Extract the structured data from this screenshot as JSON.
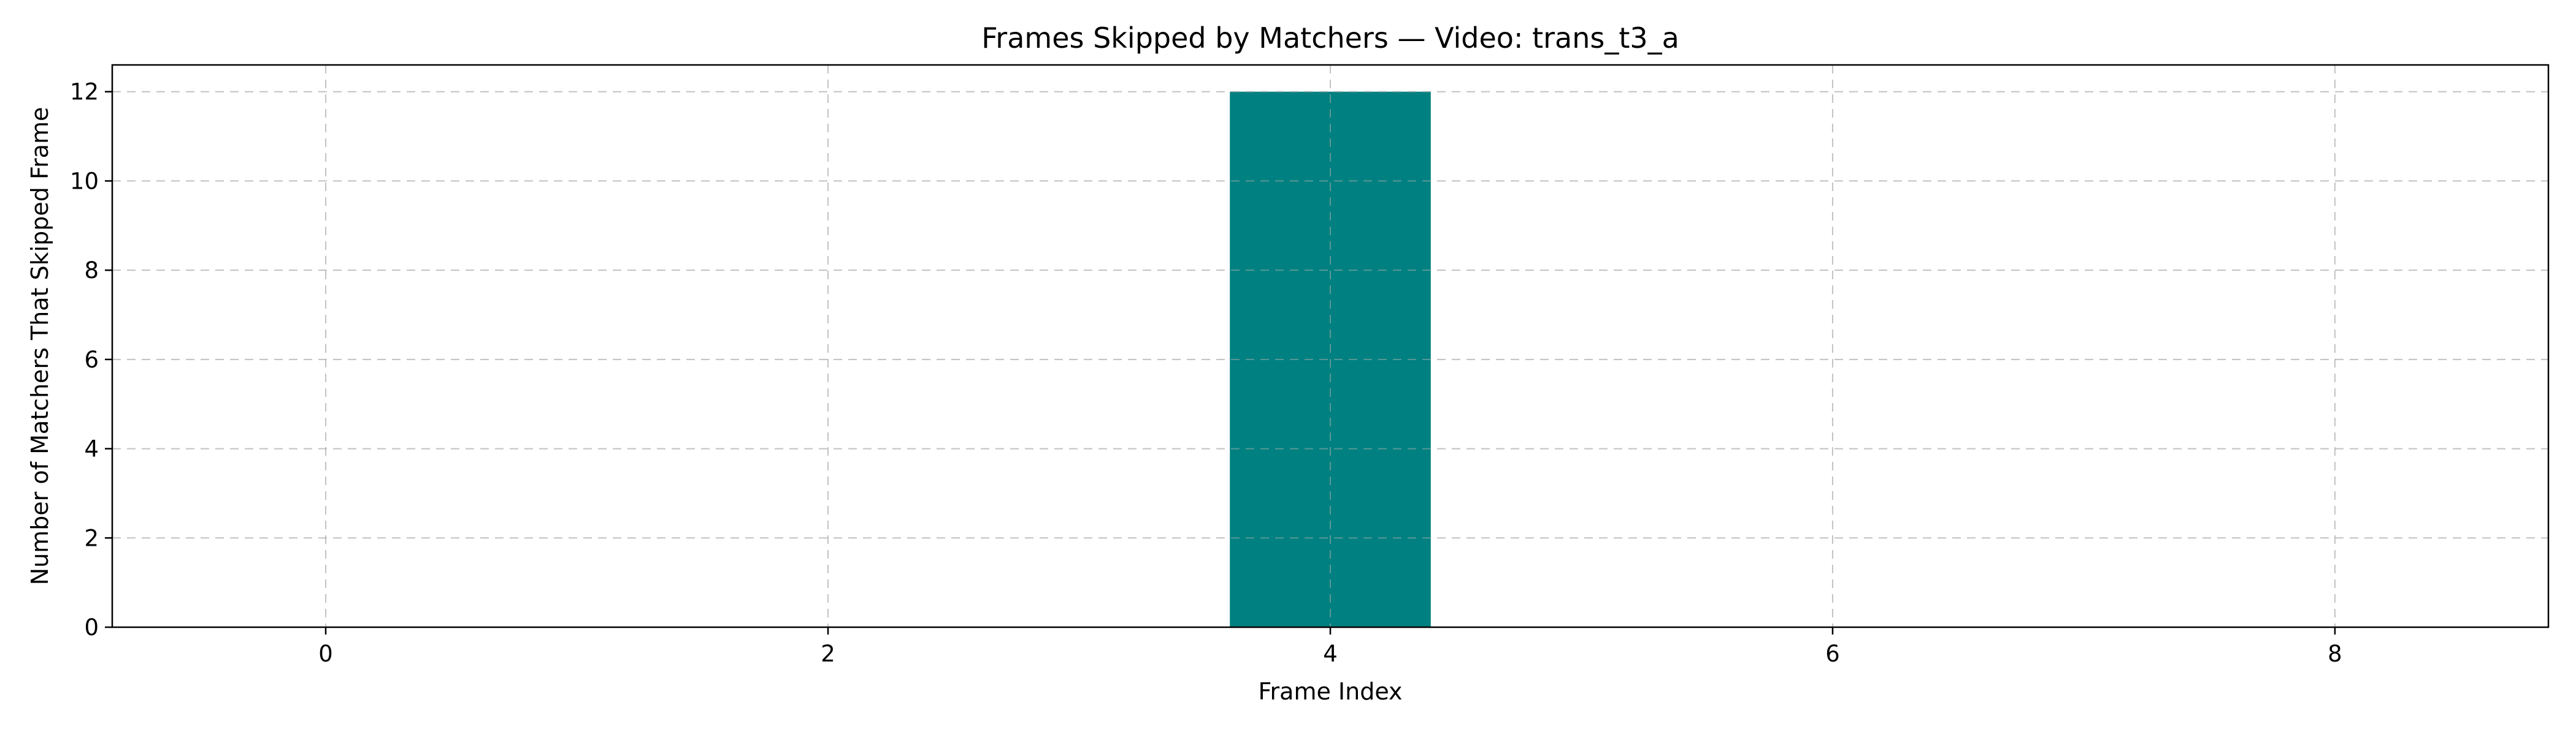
{
  "chart_data": {
    "type": "bar",
    "title": "Frames Skipped by Matchers — Video: trans_t3_a",
    "xlabel": "Frame Index",
    "ylabel": "Number of Matchers That Skipped Frame",
    "x": [
      4
    ],
    "values": [
      12
    ],
    "bar_width": 0.8,
    "bar_color": "#008080",
    "xlim": [
      -0.85,
      8.85
    ],
    "ylim": [
      0,
      12.6
    ],
    "xticks": [
      0,
      2,
      4,
      6,
      8
    ],
    "yticks": [
      0,
      2,
      4,
      6,
      8,
      10,
      12
    ],
    "grid": true,
    "legend": "none"
  }
}
